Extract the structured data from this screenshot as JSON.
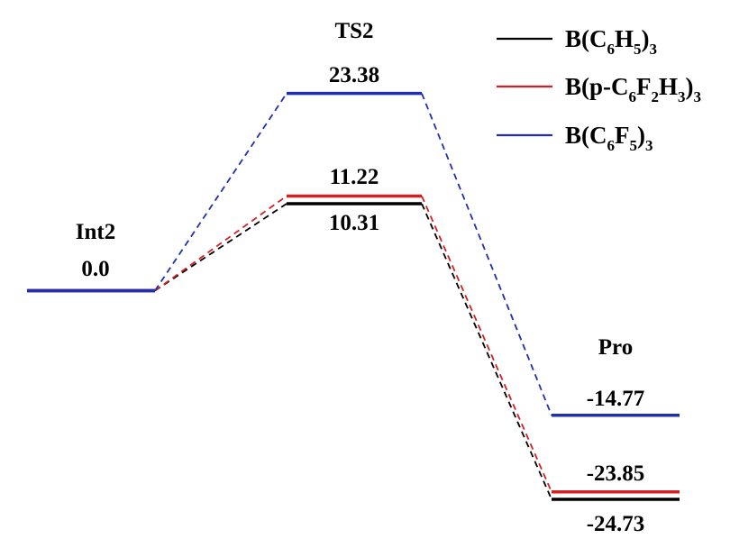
{
  "chart_data": {
    "type": "energy-profile",
    "unit": "",
    "stages": [
      "Int2",
      "TS2",
      "Pro"
    ],
    "series": [
      {
        "name": "B(C6H5)3",
        "legend_parts": [
          [
            "B(C",
            ""
          ],
          [
            "6",
            "sub"
          ],
          [
            "H",
            ""
          ],
          [
            "5",
            "sub"
          ],
          [
            ")",
            ""
          ],
          [
            "3",
            "sub"
          ]
        ],
        "color": "#000000",
        "values": [
          0.0,
          10.31,
          -24.73
        ],
        "value_labels": [
          "",
          "10.31",
          "-24.73"
        ]
      },
      {
        "name": "B(p-C6F2H3)3",
        "legend_parts": [
          [
            "B(p-C",
            ""
          ],
          [
            "6",
            "sub"
          ],
          [
            "F",
            ""
          ],
          [
            "2",
            "sub"
          ],
          [
            "H",
            ""
          ],
          [
            "3",
            "sub"
          ],
          [
            ")",
            ""
          ],
          [
            "3",
            "sub"
          ]
        ],
        "color": "#d42020",
        "values": [
          0.0,
          11.22,
          -23.85
        ],
        "value_labels": [
          "",
          "11.22",
          "-23.85"
        ]
      },
      {
        "name": "B(C6F5)3",
        "legend_parts": [
          [
            "B(C",
            ""
          ],
          [
            "6",
            "sub"
          ],
          [
            "F",
            ""
          ],
          [
            "5",
            "sub"
          ],
          [
            ")",
            ""
          ],
          [
            "3",
            "sub"
          ]
        ],
        "color": "#1f2fb0",
        "values": [
          0.0,
          23.38,
          -14.77
        ],
        "value_labels": [
          "0.0",
          "23.38",
          "-14.77"
        ]
      }
    ],
    "legend_position": "top-right",
    "grid": false,
    "axes_visible": false
  }
}
